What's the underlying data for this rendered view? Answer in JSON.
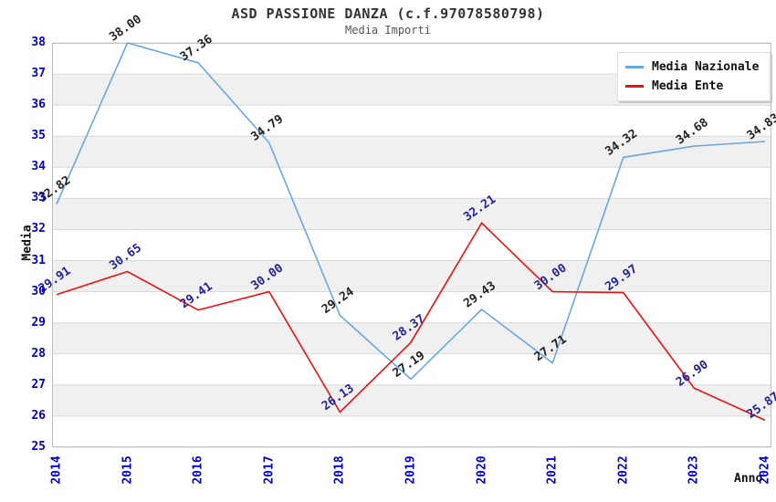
{
  "chart_data": {
    "type": "line",
    "title": "ASD PASSIONE DANZA (c.f.97078580798)",
    "subtitle": "Media Importi",
    "xlabel": "Anno",
    "ylabel": "Media",
    "x": [
      2014,
      2015,
      2016,
      2017,
      2018,
      2019,
      2020,
      2021,
      2022,
      2023,
      2024
    ],
    "series": [
      {
        "name": "Media Nazionale",
        "color": "#6aa7e3",
        "label_color": "#222222",
        "values": [
          32.82,
          38.0,
          37.36,
          34.79,
          29.24,
          27.19,
          29.43,
          27.71,
          34.32,
          34.68,
          34.83
        ]
      },
      {
        "name": "Media Ente",
        "color": "#ee1111",
        "label_color": "#222299",
        "values": [
          29.91,
          30.65,
          29.41,
          30.0,
          26.13,
          28.37,
          32.21,
          30.0,
          29.97,
          26.9,
          25.87
        ]
      }
    ],
    "ylim": [
      25,
      38
    ],
    "yticks": [
      25,
      26,
      27,
      28,
      29,
      30,
      31,
      32,
      33,
      34,
      35,
      36,
      37,
      38
    ],
    "grid": true,
    "band_colors": [
      "#ffffff",
      "#f0f0f0"
    ],
    "grid_color": "#d9d9d9",
    "border_color": "#bfbfbf",
    "tick_label_color": "#0000cc",
    "legend_position": "top-right"
  }
}
